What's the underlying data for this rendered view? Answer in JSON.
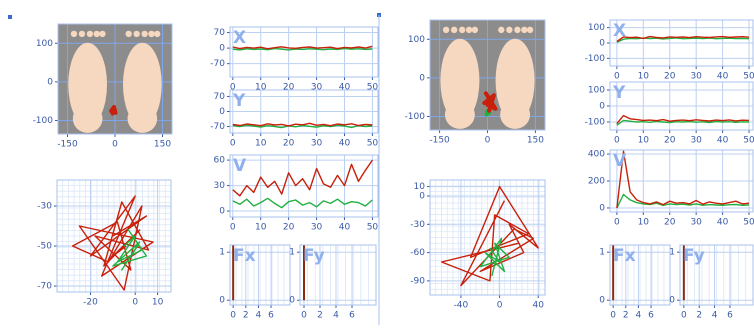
{
  "chart_data": [
    {
      "type": "foot",
      "xlim": [
        -180,
        180
      ],
      "ylim": [
        -135,
        150
      ],
      "xticks": [
        -150,
        0,
        150
      ],
      "yticks": [
        100,
        0,
        -100
      ],
      "grid": true,
      "series": [
        {
          "color": "#c8200a",
          "x": [
            -5,
            -10,
            0,
            -8,
            -3,
            -12,
            2,
            -6
          ],
          "values": [
            -70,
            -78,
            -72,
            -82,
            -65,
            -75,
            -80,
            -68
          ]
        }
      ]
    },
    {
      "type": "trajectory",
      "xlim": [
        -35,
        16
      ],
      "ylim": [
        -73,
        -17
      ],
      "xticks": [
        -20,
        0,
        10
      ],
      "yticks": [
        -30,
        -50,
        -70
      ],
      "grid": true,
      "series": [
        {
          "color": "#c8200a",
          "x": [
            -10,
            5,
            -20,
            0,
            -15,
            8,
            -25,
            -5,
            3,
            -12,
            -28,
            -8,
            -2,
            -18,
            6,
            -6,
            -14,
            2,
            -10,
            -4
          ],
          "values": [
            -45,
            -35,
            -55,
            -25,
            -65,
            -48,
            -40,
            -72,
            -30,
            -58,
            -50,
            -38,
            -62,
            -45,
            -52,
            -28,
            -60,
            -42,
            -55,
            -50
          ]
        },
        {
          "color": "#22b040",
          "x": [
            -5,
            0,
            -8,
            3,
            -3,
            5,
            -10,
            2,
            -6,
            1
          ],
          "values": [
            -50,
            -45,
            -58,
            -52,
            -42,
            -55,
            -60,
            -48,
            -62,
            -50
          ]
        }
      ]
    },
    {
      "type": "line",
      "label": "X",
      "xlim": [
        -1,
        52
      ],
      "ylim": [
        -130,
        95
      ],
      "xticks": [
        0,
        10,
        20,
        30,
        40,
        50
      ],
      "yticks": [
        70,
        0,
        -70
      ],
      "grid": true,
      "x": [
        0,
        2.5,
        5,
        7.5,
        10,
        12.5,
        15,
        17.5,
        20,
        22.5,
        25,
        27.5,
        30,
        32.5,
        35,
        37.5,
        40,
        42.5,
        45,
        47.5,
        50
      ],
      "series": [
        {
          "color": "#22b040",
          "values": [
            -5,
            -8,
            -3,
            -6,
            -4,
            -7,
            -2,
            -5,
            -8,
            -4,
            -6,
            -3,
            -5,
            -7,
            -4,
            -6,
            -2,
            -5,
            -3,
            -6,
            -4
          ]
        },
        {
          "color": "#c8200a",
          "values": [
            5,
            -2,
            3,
            0,
            4,
            -3,
            2,
            6,
            1,
            -1,
            3,
            5,
            0,
            2,
            4,
            -2,
            3,
            1,
            5,
            0,
            8
          ]
        }
      ]
    },
    {
      "type": "line",
      "label": "Y",
      "xlim": [
        -1,
        52
      ],
      "ylim": [
        -100,
        100
      ],
      "xticks": [
        0,
        10,
        20,
        30,
        40,
        50
      ],
      "yticks": [
        70,
        0,
        -70
      ],
      "grid": true,
      "x": [
        0,
        2.5,
        5,
        7.5,
        10,
        12.5,
        15,
        17.5,
        20,
        22.5,
        25,
        27.5,
        30,
        32.5,
        35,
        37.5,
        40,
        42.5,
        45,
        47.5,
        50
      ],
      "series": [
        {
          "color": "#22b040",
          "values": [
            -65,
            -70,
            -64,
            -68,
            -72,
            -66,
            -70,
            -75,
            -67,
            -71,
            -65,
            -69,
            -73,
            -66,
            -70,
            -64,
            -68,
            -74,
            -66,
            -70,
            -67
          ]
        },
        {
          "color": "#c8200a",
          "values": [
            -60,
            -65,
            -58,
            -62,
            -66,
            -57,
            -63,
            -60,
            -67,
            -59,
            -62,
            -55,
            -64,
            -60,
            -66,
            -58,
            -62,
            -57,
            -65,
            -60,
            -63
          ]
        }
      ]
    },
    {
      "type": "line",
      "label": "V",
      "xlim": [
        -1,
        52
      ],
      "ylim": [
        -7,
        66
      ],
      "xticks": [
        0,
        10,
        20,
        30,
        40,
        50
      ],
      "yticks": [
        60,
        30,
        0
      ],
      "grid": true,
      "x": [
        0,
        2.5,
        5,
        7.5,
        10,
        12.5,
        15,
        17.5,
        20,
        22.5,
        25,
        27.5,
        30,
        32.5,
        35,
        37.5,
        40,
        42.5,
        45,
        47.5,
        50
      ],
      "series": [
        {
          "color": "#22b040",
          "values": [
            12,
            8,
            14,
            6,
            10,
            15,
            9,
            4,
            11,
            13,
            7,
            10,
            5,
            12,
            9,
            14,
            8,
            11,
            10,
            6,
            13
          ]
        },
        {
          "color": "#c8200a",
          "values": [
            25,
            18,
            30,
            22,
            40,
            28,
            35,
            20,
            45,
            30,
            38,
            25,
            50,
            32,
            28,
            42,
            30,
            55,
            35,
            48,
            60
          ]
        }
      ]
    },
    {
      "type": "impulse",
      "label": "Fx",
      "xlim": [
        -0.5,
        9
      ],
      "ylim": [
        -0.1,
        1.15
      ],
      "xticks": [
        0,
        2,
        4,
        6
      ],
      "yticks": [
        1,
        0
      ],
      "grid": true,
      "series": [
        {
          "color": "#8b2a10",
          "x": [
            0
          ],
          "values": [
            1.15
          ]
        }
      ]
    },
    {
      "type": "impulse",
      "label": "Fy",
      "xlim": [
        -0.5,
        9
      ],
      "ylim": [
        -0.1,
        1.15
      ],
      "xticks": [
        0,
        2,
        4,
        6
      ],
      "yticks": [
        1,
        0
      ],
      "grid": true,
      "series": [
        {
          "color": "#8b2a10",
          "x": [
            0
          ],
          "values": [
            1.15
          ]
        }
      ]
    },
    {
      "type": "foot",
      "xlim": [
        -180,
        180
      ],
      "ylim": [
        -135,
        150
      ],
      "xticks": [
        -150,
        0,
        150
      ],
      "yticks": [
        100,
        0,
        -100
      ],
      "grid": true,
      "series": [
        {
          "color": "#22b040",
          "x": [
            0,
            -3,
            5,
            2
          ],
          "values": [
            -85,
            -95,
            -90,
            -80
          ]
        },
        {
          "color": "#c8200a",
          "x": [
            10,
            -5,
            25,
            0,
            15,
            -10,
            20,
            5,
            12
          ],
          "values": [
            -60,
            -40,
            -80,
            -70,
            -50,
            -65,
            -45,
            -85,
            -55
          ]
        }
      ]
    },
    {
      "type": "trajectory",
      "xlim": [
        -72,
        47
      ],
      "ylim": [
        -105,
        17
      ],
      "xticks": [
        -40,
        0,
        40
      ],
      "yticks": [
        10,
        0,
        -30,
        -60,
        -90
      ],
      "grid": true,
      "series": [
        {
          "color": "#c8200a",
          "x": [
            20,
            -60,
            -10,
            -5,
            30,
            -30,
            0,
            40,
            10,
            25,
            -20,
            35,
            15,
            -40,
            5
          ],
          "values": [
            -50,
            -70,
            -90,
            -20,
            -40,
            -65,
            10,
            -55,
            -30,
            -60,
            -80,
            -45,
            -35,
            -95,
            -5
          ]
        },
        {
          "color": "#22b040",
          "x": [
            -10,
            0,
            -15,
            5,
            -5,
            10,
            -20,
            2,
            -8
          ],
          "values": [
            -55,
            -70,
            -60,
            -80,
            -50,
            -65,
            -75,
            -45,
            -85
          ]
        }
      ]
    },
    {
      "type": "line",
      "label": "X",
      "xlim": [
        -2.6,
        51.5
      ],
      "ylim": [
        -150,
        150
      ],
      "xticks": [
        0,
        10,
        20,
        30,
        40,
        50
      ],
      "yticks": [
        100,
        0,
        -100
      ],
      "grid": true,
      "x": [
        0,
        2.5,
        5,
        7.5,
        10,
        12.5,
        15,
        17.5,
        20,
        22.5,
        25,
        27.5,
        30,
        32.5,
        35,
        37.5,
        40,
        42.5,
        45,
        47.5,
        50
      ],
      "series": [
        {
          "color": "#22b040",
          "values": [
            5,
            25,
            30,
            28,
            32,
            29,
            31,
            27,
            30,
            33,
            28,
            30,
            31,
            29,
            32,
            28,
            30,
            31,
            29,
            30,
            28
          ]
        },
        {
          "color": "#c8200a",
          "values": [
            10,
            40,
            35,
            38,
            30,
            42,
            36,
            33,
            40,
            37,
            39,
            35,
            41,
            38,
            36,
            40,
            42,
            37,
            39,
            41,
            38
          ]
        }
      ]
    },
    {
      "type": "line",
      "label": "Y",
      "xlim": [
        -2.6,
        51.5
      ],
      "ylim": [
        -150,
        150
      ],
      "xticks": [
        0,
        10,
        20,
        30,
        40,
        50
      ],
      "yticks": [
        100,
        0,
        -100
      ],
      "grid": true,
      "x": [
        0,
        2.5,
        5,
        7.5,
        10,
        12.5,
        15,
        17.5,
        20,
        22.5,
        25,
        27.5,
        30,
        32.5,
        35,
        37.5,
        40,
        42.5,
        45,
        47.5,
        50
      ],
      "series": [
        {
          "color": "#22b040",
          "values": [
            -120,
            -90,
            -95,
            -100,
            -98,
            -102,
            -96,
            -100,
            -104,
            -98,
            -100,
            -97,
            -101,
            -99,
            -103,
            -97,
            -100,
            -98,
            -102,
            -99,
            -100
          ]
        },
        {
          "color": "#c8200a",
          "values": [
            -110,
            -60,
            -80,
            -85,
            -90,
            -88,
            -92,
            -85,
            -95,
            -90,
            -88,
            -92,
            -86,
            -90,
            -94,
            -88,
            -91,
            -87,
            -93,
            -89,
            -90
          ]
        }
      ]
    },
    {
      "type": "line",
      "label": "V",
      "xlim": [
        -2.6,
        51.5
      ],
      "ylim": [
        -30,
        430
      ],
      "xticks": [
        0,
        10,
        20,
        30,
        40,
        50
      ],
      "yticks": [
        400,
        200,
        0
      ],
      "grid": true,
      "x": [
        0,
        2.5,
        5,
        7.5,
        10,
        12.5,
        15,
        17.5,
        20,
        22.5,
        25,
        27.5,
        30,
        32.5,
        35,
        37.5,
        40,
        42.5,
        45,
        47.5,
        50
      ],
      "series": [
        {
          "color": "#22b040",
          "values": [
            0,
            100,
            60,
            40,
            30,
            25,
            35,
            20,
            30,
            25,
            28,
            22,
            30,
            20,
            25,
            22,
            20,
            24,
            26,
            20,
            22
          ]
        },
        {
          "color": "#c8200a",
          "values": [
            0,
            420,
            120,
            60,
            40,
            30,
            45,
            25,
            50,
            35,
            40,
            30,
            55,
            28,
            45,
            35,
            30,
            40,
            50,
            30,
            35
          ]
        }
      ]
    },
    {
      "type": "impulse",
      "label": "Fx",
      "xlim": [
        -0.5,
        9
      ],
      "ylim": [
        -0.1,
        1.15
      ],
      "xticks": [
        0,
        2,
        4,
        6
      ],
      "yticks": [
        1,
        0
      ],
      "grid": true,
      "series": [
        {
          "color": "#8b2a10",
          "x": [
            0
          ],
          "values": [
            1.15
          ]
        }
      ]
    },
    {
      "type": "impulse",
      "label": "Fy",
      "xlim": [
        -0.5,
        9
      ],
      "ylim": [
        -0.1,
        1.15
      ],
      "xticks": [
        0,
        2,
        4,
        6
      ],
      "yticks": [
        1,
        0
      ],
      "grid": true,
      "series": [
        {
          "color": "#8b2a10",
          "x": [
            0
          ],
          "values": [
            1.15
          ]
        }
      ]
    }
  ]
}
